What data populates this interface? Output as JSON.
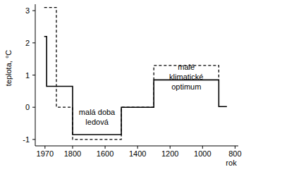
{
  "chart_data": {
    "type": "line",
    "x_label": "rok",
    "y_label": "teplota, °C",
    "xlim": [
      2030,
      780
    ],
    "ylim": [
      -1.2,
      3.2
    ],
    "xticks": [
      1970,
      1800,
      1600,
      1400,
      1200,
      1000,
      800
    ],
    "yticks": [
      -1,
      0,
      1,
      2,
      3
    ],
    "grid": false,
    "series": [
      {
        "color": "#000000",
        "line_style": "solid",
        "x": [
          1975,
          1960,
          1960,
          1800,
          1800,
          1500,
          1500,
          1300,
          1300,
          900,
          900,
          850
        ],
        "values": [
          2.2,
          2.2,
          0.65,
          0.65,
          -0.85,
          -0.85,
          0,
          0,
          0.85,
          0.85,
          0.02,
          0.02
        ]
      },
      {
        "color": "#000000",
        "line_style": "dashed",
        "x": [
          1975,
          1900,
          1900,
          1800,
          1800,
          1500,
          1500,
          1300,
          1300,
          900,
          900
        ],
        "values": [
          3.1,
          3.1,
          0,
          0,
          -1.0,
          -1.0,
          0,
          0,
          1.3,
          1.3,
          0.85
        ]
      }
    ],
    "annotations": [
      {
        "text": [
          "malá doba",
          "ledová"
        ],
        "x": 1650,
        "y": -0.3
      },
      {
        "text": [
          "malé",
          "klimatické",
          "optimum"
        ],
        "x": 1100,
        "y": 0.95
      }
    ]
  }
}
